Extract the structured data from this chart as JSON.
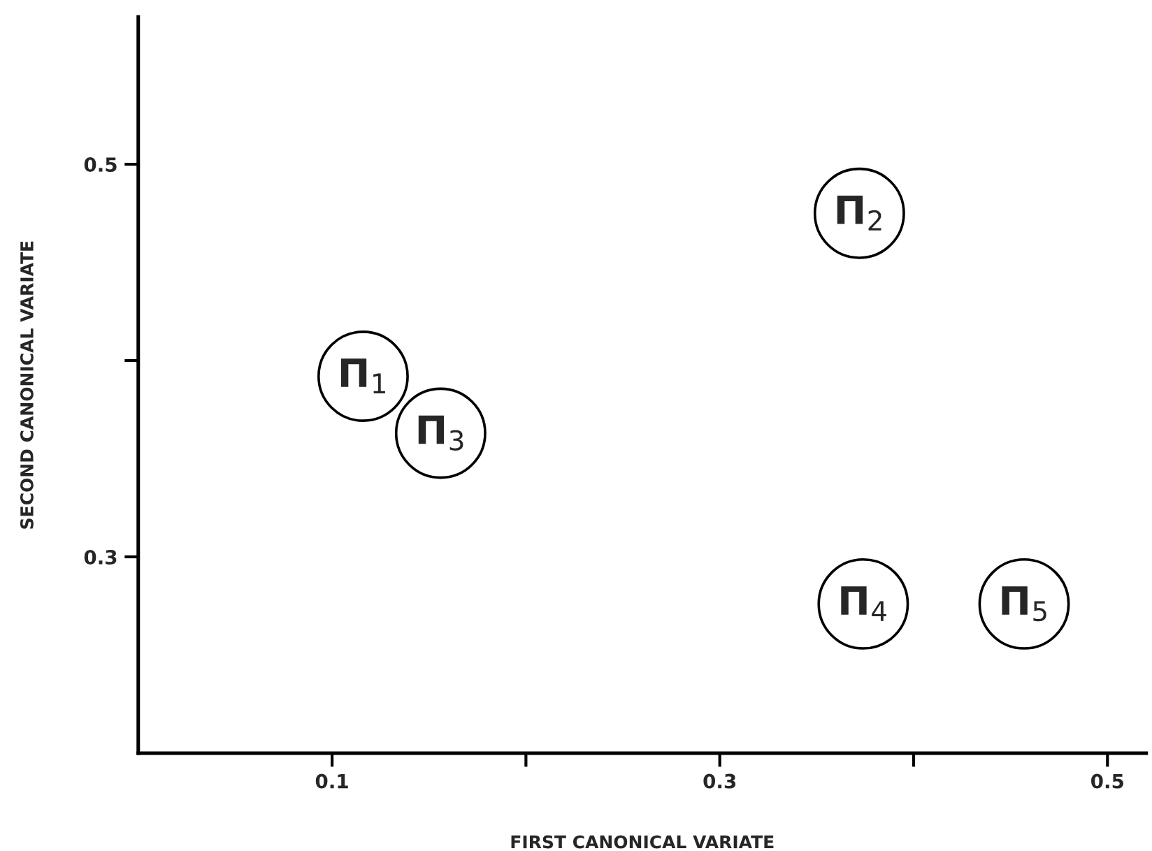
{
  "chart_data": {
    "type": "scatter",
    "xlabel": "FIRST CANONICAL VARIATE",
    "ylabel": "SECOND CANONICAL VARIATE",
    "x": [
      0.116,
      0.372,
      0.156,
      0.374,
      0.457
    ],
    "values": [
      0.392,
      0.475,
      0.363,
      0.276,
      0.276
    ],
    "color": "#000000",
    "marker": "circle",
    "xlim": [
      0.0,
      0.52
    ],
    "ylim": [
      0.2,
      0.575
    ],
    "xticks": [
      0.1,
      {
        "value": 0.2,
        "label": null
      },
      0.3,
      {
        "value": 0.4,
        "label": null
      },
      0.5
    ],
    "yticks": [
      0.3,
      {
        "value": 0.4,
        "label": null
      },
      0.5
    ],
    "grid": false,
    "annotations": [
      {
        "text": "Π$_{1}$",
        "x": 0.116,
        "y": 0.392
      },
      {
        "text": "Π$_{2}$",
        "x": 0.372,
        "y": 0.475
      },
      {
        "text": "Π$_{3}$",
        "x": 0.156,
        "y": 0.363
      },
      {
        "text": "Π$_{4}$",
        "x": 0.374,
        "y": 0.276
      },
      {
        "text": "Π$_{5}$",
        "x": 0.457,
        "y": 0.276
      }
    ]
  }
}
